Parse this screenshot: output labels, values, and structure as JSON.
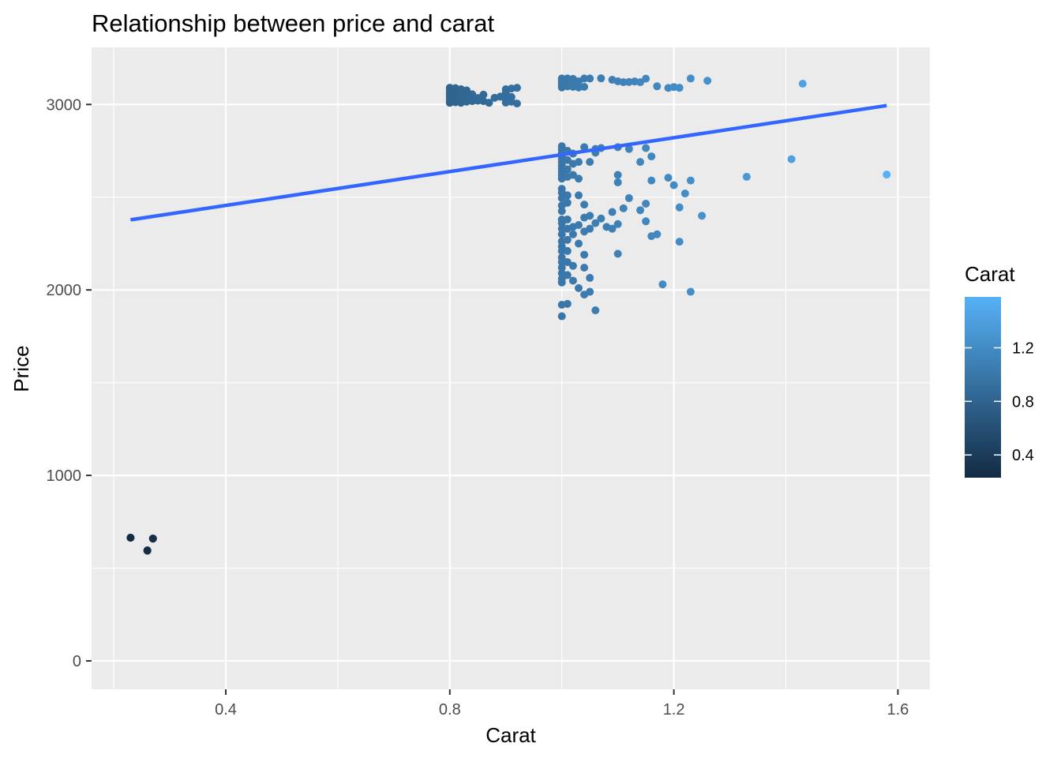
{
  "chart_data": {
    "type": "scatter",
    "title": "Relationship between price and carat",
    "xlabel": "Carat",
    "ylabel": "Price",
    "xlim": [
      0.2,
      1.6
    ],
    "ylim": [
      0,
      3200
    ],
    "x_ticks": [
      0.4,
      0.8,
      1.2,
      1.6
    ],
    "x_tick_labels": [
      "0.4",
      "0.8",
      "1.2",
      "1.6"
    ],
    "y_ticks": [
      0,
      1000,
      2000,
      3000
    ],
    "y_tick_labels": [
      "0",
      "1000",
      "2000",
      "3000"
    ],
    "grid": true,
    "panel_background": "#ebebeb",
    "trend_line": {
      "type": "linear",
      "color": "#3366ff",
      "points": [
        [
          0.23,
          2378
        ],
        [
          1.58,
          2994
        ]
      ]
    },
    "legend": {
      "title": "Carat",
      "position": "right",
      "type": "colorbar",
      "range": [
        0.23,
        1.58
      ],
      "breaks": [
        0.4,
        0.8,
        1.2
      ],
      "break_labels": [
        "0.4",
        "0.8",
        "1.2"
      ],
      "low_color": "#132b43",
      "high_color": "#56b1f7"
    },
    "points": [
      {
        "x": 0.23,
        "y": 664
      },
      {
        "x": 0.23,
        "y": 664
      },
      {
        "x": 0.26,
        "y": 596
      },
      {
        "x": 0.27,
        "y": 659
      },
      {
        "x": 0.27,
        "y": 660
      },
      {
        "x": 0.26,
        "y": 594
      },
      {
        "x": 0.8,
        "y": 3009
      },
      {
        "x": 0.8,
        "y": 3020
      },
      {
        "x": 0.8,
        "y": 3032
      },
      {
        "x": 0.8,
        "y": 3043
      },
      {
        "x": 0.8,
        "y": 3055
      },
      {
        "x": 0.8,
        "y": 3066
      },
      {
        "x": 0.8,
        "y": 3078
      },
      {
        "x": 0.8,
        "y": 3090
      },
      {
        "x": 0.81,
        "y": 3012
      },
      {
        "x": 0.81,
        "y": 3030
      },
      {
        "x": 0.81,
        "y": 3050
      },
      {
        "x": 0.81,
        "y": 3070
      },
      {
        "x": 0.81,
        "y": 3088
      },
      {
        "x": 0.82,
        "y": 3009
      },
      {
        "x": 0.82,
        "y": 3025
      },
      {
        "x": 0.82,
        "y": 3045
      },
      {
        "x": 0.82,
        "y": 3065
      },
      {
        "x": 0.82,
        "y": 3082
      },
      {
        "x": 0.83,
        "y": 3015
      },
      {
        "x": 0.83,
        "y": 3040
      },
      {
        "x": 0.83,
        "y": 3076
      },
      {
        "x": 0.84,
        "y": 3018
      },
      {
        "x": 0.84,
        "y": 3055
      },
      {
        "x": 0.85,
        "y": 3020
      },
      {
        "x": 0.85,
        "y": 3035
      },
      {
        "x": 0.86,
        "y": 3018
      },
      {
        "x": 0.86,
        "y": 3053
      },
      {
        "x": 0.87,
        "y": 3009
      },
      {
        "x": 0.88,
        "y": 3036
      },
      {
        "x": 0.89,
        "y": 3042
      },
      {
        "x": 0.9,
        "y": 3010
      },
      {
        "x": 0.9,
        "y": 3027
      },
      {
        "x": 0.9,
        "y": 3048
      },
      {
        "x": 0.9,
        "y": 3064
      },
      {
        "x": 0.9,
        "y": 3082
      },
      {
        "x": 0.91,
        "y": 3015
      },
      {
        "x": 0.91,
        "y": 3040
      },
      {
        "x": 0.91,
        "y": 3086
      },
      {
        "x": 0.92,
        "y": 3005
      },
      {
        "x": 0.92,
        "y": 3090
      },
      {
        "x": 1.0,
        "y": 3092
      },
      {
        "x": 1.0,
        "y": 3104
      },
      {
        "x": 1.0,
        "y": 3116
      },
      {
        "x": 1.0,
        "y": 3128
      },
      {
        "x": 1.0,
        "y": 3140
      },
      {
        "x": 1.01,
        "y": 3098
      },
      {
        "x": 1.01,
        "y": 3122
      },
      {
        "x": 1.01,
        "y": 3140
      },
      {
        "x": 1.02,
        "y": 3095
      },
      {
        "x": 1.02,
        "y": 3120
      },
      {
        "x": 1.02,
        "y": 3138
      },
      {
        "x": 1.03,
        "y": 3092
      },
      {
        "x": 1.03,
        "y": 3125
      },
      {
        "x": 1.04,
        "y": 3095
      },
      {
        "x": 1.04,
        "y": 3140
      },
      {
        "x": 1.05,
        "y": 3140
      },
      {
        "x": 1.07,
        "y": 3141
      },
      {
        "x": 1.09,
        "y": 3133
      },
      {
        "x": 1.1,
        "y": 3125
      },
      {
        "x": 1.11,
        "y": 3120
      },
      {
        "x": 1.12,
        "y": 3121
      },
      {
        "x": 1.13,
        "y": 3124
      },
      {
        "x": 1.14,
        "y": 3120
      },
      {
        "x": 1.15,
        "y": 3139
      },
      {
        "x": 1.17,
        "y": 3098
      },
      {
        "x": 1.19,
        "y": 3089
      },
      {
        "x": 1.2,
        "y": 3094
      },
      {
        "x": 1.21,
        "y": 3090
      },
      {
        "x": 1.23,
        "y": 3140
      },
      {
        "x": 1.26,
        "y": 3128
      },
      {
        "x": 1.43,
        "y": 3112
      },
      {
        "x": 1.0,
        "y": 2775
      },
      {
        "x": 1.0,
        "y": 2758
      },
      {
        "x": 1.0,
        "y": 2740
      },
      {
        "x": 1.0,
        "y": 2722
      },
      {
        "x": 1.0,
        "y": 2705
      },
      {
        "x": 1.0,
        "y": 2688
      },
      {
        "x": 1.0,
        "y": 2670
      },
      {
        "x": 1.0,
        "y": 2652
      },
      {
        "x": 1.0,
        "y": 2635
      },
      {
        "x": 1.0,
        "y": 2618
      },
      {
        "x": 1.0,
        "y": 2600
      },
      {
        "x": 1.0,
        "y": 2545
      },
      {
        "x": 1.0,
        "y": 2525
      },
      {
        "x": 1.0,
        "y": 2495
      },
      {
        "x": 1.0,
        "y": 2455
      },
      {
        "x": 1.0,
        "y": 2425
      },
      {
        "x": 1.0,
        "y": 2380
      },
      {
        "x": 1.0,
        "y": 2360
      },
      {
        "x": 1.0,
        "y": 2330
      },
      {
        "x": 1.0,
        "y": 2300
      },
      {
        "x": 1.0,
        "y": 2262
      },
      {
        "x": 1.0,
        "y": 2235
      },
      {
        "x": 1.0,
        "y": 2210
      },
      {
        "x": 1.0,
        "y": 2175
      },
      {
        "x": 1.0,
        "y": 2150
      },
      {
        "x": 1.0,
        "y": 2120
      },
      {
        "x": 1.0,
        "y": 2090
      },
      {
        "x": 1.0,
        "y": 2060
      },
      {
        "x": 1.0,
        "y": 2040
      },
      {
        "x": 1.0,
        "y": 1920
      },
      {
        "x": 1.0,
        "y": 1858
      },
      {
        "x": 1.01,
        "y": 2750
      },
      {
        "x": 1.01,
        "y": 2700
      },
      {
        "x": 1.01,
        "y": 2650
      },
      {
        "x": 1.01,
        "y": 2610
      },
      {
        "x": 1.01,
        "y": 2510
      },
      {
        "x": 1.01,
        "y": 2470
      },
      {
        "x": 1.01,
        "y": 2380
      },
      {
        "x": 1.01,
        "y": 2330
      },
      {
        "x": 1.01,
        "y": 2270
      },
      {
        "x": 1.01,
        "y": 2210
      },
      {
        "x": 1.01,
        "y": 2150
      },
      {
        "x": 1.01,
        "y": 2080
      },
      {
        "x": 1.01,
        "y": 1925
      },
      {
        "x": 1.02,
        "y": 2735
      },
      {
        "x": 1.02,
        "y": 2680
      },
      {
        "x": 1.02,
        "y": 2620
      },
      {
        "x": 1.02,
        "y": 2340
      },
      {
        "x": 1.02,
        "y": 2300
      },
      {
        "x": 1.02,
        "y": 2130
      },
      {
        "x": 1.02,
        "y": 2050
      },
      {
        "x": 1.03,
        "y": 2600
      },
      {
        "x": 1.03,
        "y": 2350
      },
      {
        "x": 1.03,
        "y": 2250
      },
      {
        "x": 1.03,
        "y": 2010
      },
      {
        "x": 1.03,
        "y": 2510
      },
      {
        "x": 1.03,
        "y": 2690
      },
      {
        "x": 1.04,
        "y": 2770
      },
      {
        "x": 1.04,
        "y": 2460
      },
      {
        "x": 1.04,
        "y": 2390
      },
      {
        "x": 1.04,
        "y": 2315
      },
      {
        "x": 1.04,
        "y": 2190
      },
      {
        "x": 1.04,
        "y": 2120
      },
      {
        "x": 1.04,
        "y": 1975
      },
      {
        "x": 1.05,
        "y": 2690
      },
      {
        "x": 1.05,
        "y": 2400
      },
      {
        "x": 1.05,
        "y": 2330
      },
      {
        "x": 1.05,
        "y": 2065
      },
      {
        "x": 1.05,
        "y": 1990
      },
      {
        "x": 1.06,
        "y": 2760
      },
      {
        "x": 1.06,
        "y": 2740
      },
      {
        "x": 1.06,
        "y": 2360
      },
      {
        "x": 1.06,
        "y": 1890
      },
      {
        "x": 1.07,
        "y": 2765
      },
      {
        "x": 1.07,
        "y": 2385
      },
      {
        "x": 1.08,
        "y": 2340
      },
      {
        "x": 1.09,
        "y": 2420
      },
      {
        "x": 1.09,
        "y": 2330
      },
      {
        "x": 1.1,
        "y": 2770
      },
      {
        "x": 1.1,
        "y": 2620
      },
      {
        "x": 1.1,
        "y": 2580
      },
      {
        "x": 1.1,
        "y": 2355
      },
      {
        "x": 1.1,
        "y": 2195
      },
      {
        "x": 1.11,
        "y": 2440
      },
      {
        "x": 1.12,
        "y": 2760
      },
      {
        "x": 1.12,
        "y": 2495
      },
      {
        "x": 1.14,
        "y": 2690
      },
      {
        "x": 1.14,
        "y": 2430
      },
      {
        "x": 1.15,
        "y": 2765
      },
      {
        "x": 1.15,
        "y": 2465
      },
      {
        "x": 1.15,
        "y": 2370
      },
      {
        "x": 1.16,
        "y": 2720
      },
      {
        "x": 1.16,
        "y": 2590
      },
      {
        "x": 1.16,
        "y": 2290
      },
      {
        "x": 1.17,
        "y": 2300
      },
      {
        "x": 1.18,
        "y": 2030
      },
      {
        "x": 1.19,
        "y": 2605
      },
      {
        "x": 1.2,
        "y": 2565
      },
      {
        "x": 1.21,
        "y": 2445
      },
      {
        "x": 1.21,
        "y": 2260
      },
      {
        "x": 1.22,
        "y": 2520
      },
      {
        "x": 1.23,
        "y": 2590
      },
      {
        "x": 1.23,
        "y": 1990
      },
      {
        "x": 1.25,
        "y": 2400
      },
      {
        "x": 1.33,
        "y": 2610
      },
      {
        "x": 1.41,
        "y": 2705
      },
      {
        "x": 1.58,
        "y": 2622
      }
    ]
  }
}
